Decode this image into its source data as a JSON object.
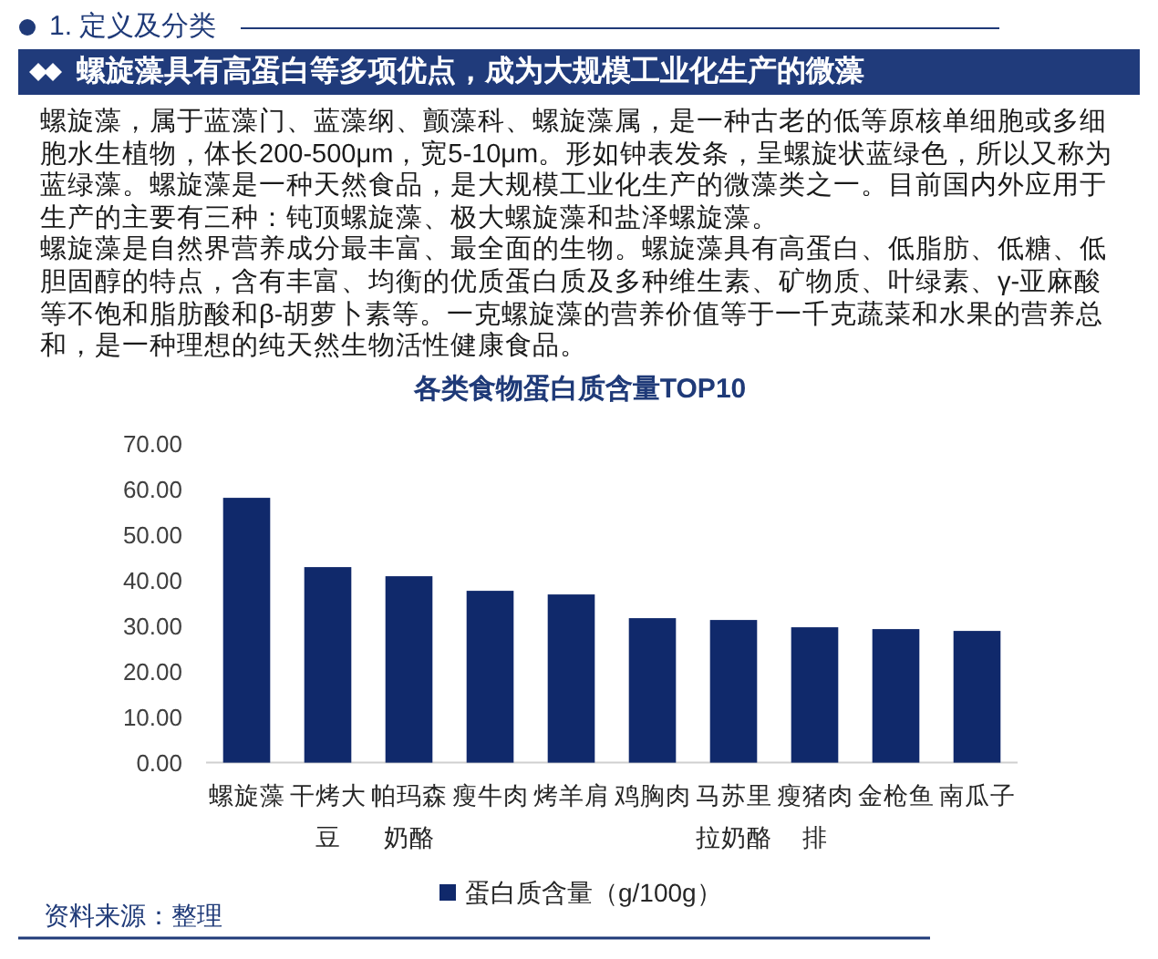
{
  "chart_data": {
    "type": "bar",
    "title": "各类食物蛋白质含量TOP10",
    "categories": [
      "螺旋藻",
      "干烤大豆",
      "帕玛森奶酪",
      "瘦牛肉",
      "烤羊肩",
      "鸡胸肉",
      "马苏里拉奶酪",
      "瘦猪肉排",
      "金枪鱼",
      "南瓜子"
    ],
    "series": [
      {
        "name": "蛋白质含量（g/100g）",
        "color": "#10296b",
        "values": [
          58.1,
          42.9,
          40.9,
          37.7,
          36.9,
          31.7,
          31.3,
          29.7,
          29.3,
          28.9
        ]
      }
    ],
    "ylim": [
      0,
      70
    ],
    "yticks": [
      {
        "value": 0,
        "label": "0.00"
      },
      {
        "value": 10,
        "label": "10.00"
      },
      {
        "value": 20,
        "label": "20.00"
      },
      {
        "value": 30,
        "label": "30.00"
      },
      {
        "value": 40,
        "label": "40.00"
      },
      {
        "value": 50,
        "label": "50.00"
      },
      {
        "value": 60,
        "label": "60.00"
      },
      {
        "value": 70,
        "label": "70.00"
      }
    ],
    "legend": "bottom",
    "annotations": [
      "1. 定义及分类",
      "螺旋藻具有高蛋白等多项优点，成为大规模工业化生产的微藻",
      "螺旋藻，属于蓝藻门、蓝藻纲、颤藻科、螺旋藻属，是一种古老的低等原核单细胞或多细胞水生植物，体长200-500μm，宽5-10μm。形如钟表发条，呈螺旋状蓝绿色，所以又称为蓝绿藻。螺旋藻是一种天然食品，是大规模工业化生产的微藻类之一。目前国内外应用于生产的主要有三种：钝顶螺旋藻、极大螺旋藻和盐泽螺旋藻。",
      "螺旋藻是自然界营养成分最丰富、最全面的生物。螺旋藻具有高蛋白、低脂肪、低糖、低胆固醇的特点，含有丰富、均衡的优质蛋白质及多种维生素、矿物质、叶绿素、γ-亚麻酸等不饱和脂肪酸和β-胡萝卜素等。一克螺旋藻的营养价值等于一千克蔬菜和水果的营养总和，是一种理想的纯天然生物活性健康食品。",
      "资料来源：整理"
    ]
  }
}
